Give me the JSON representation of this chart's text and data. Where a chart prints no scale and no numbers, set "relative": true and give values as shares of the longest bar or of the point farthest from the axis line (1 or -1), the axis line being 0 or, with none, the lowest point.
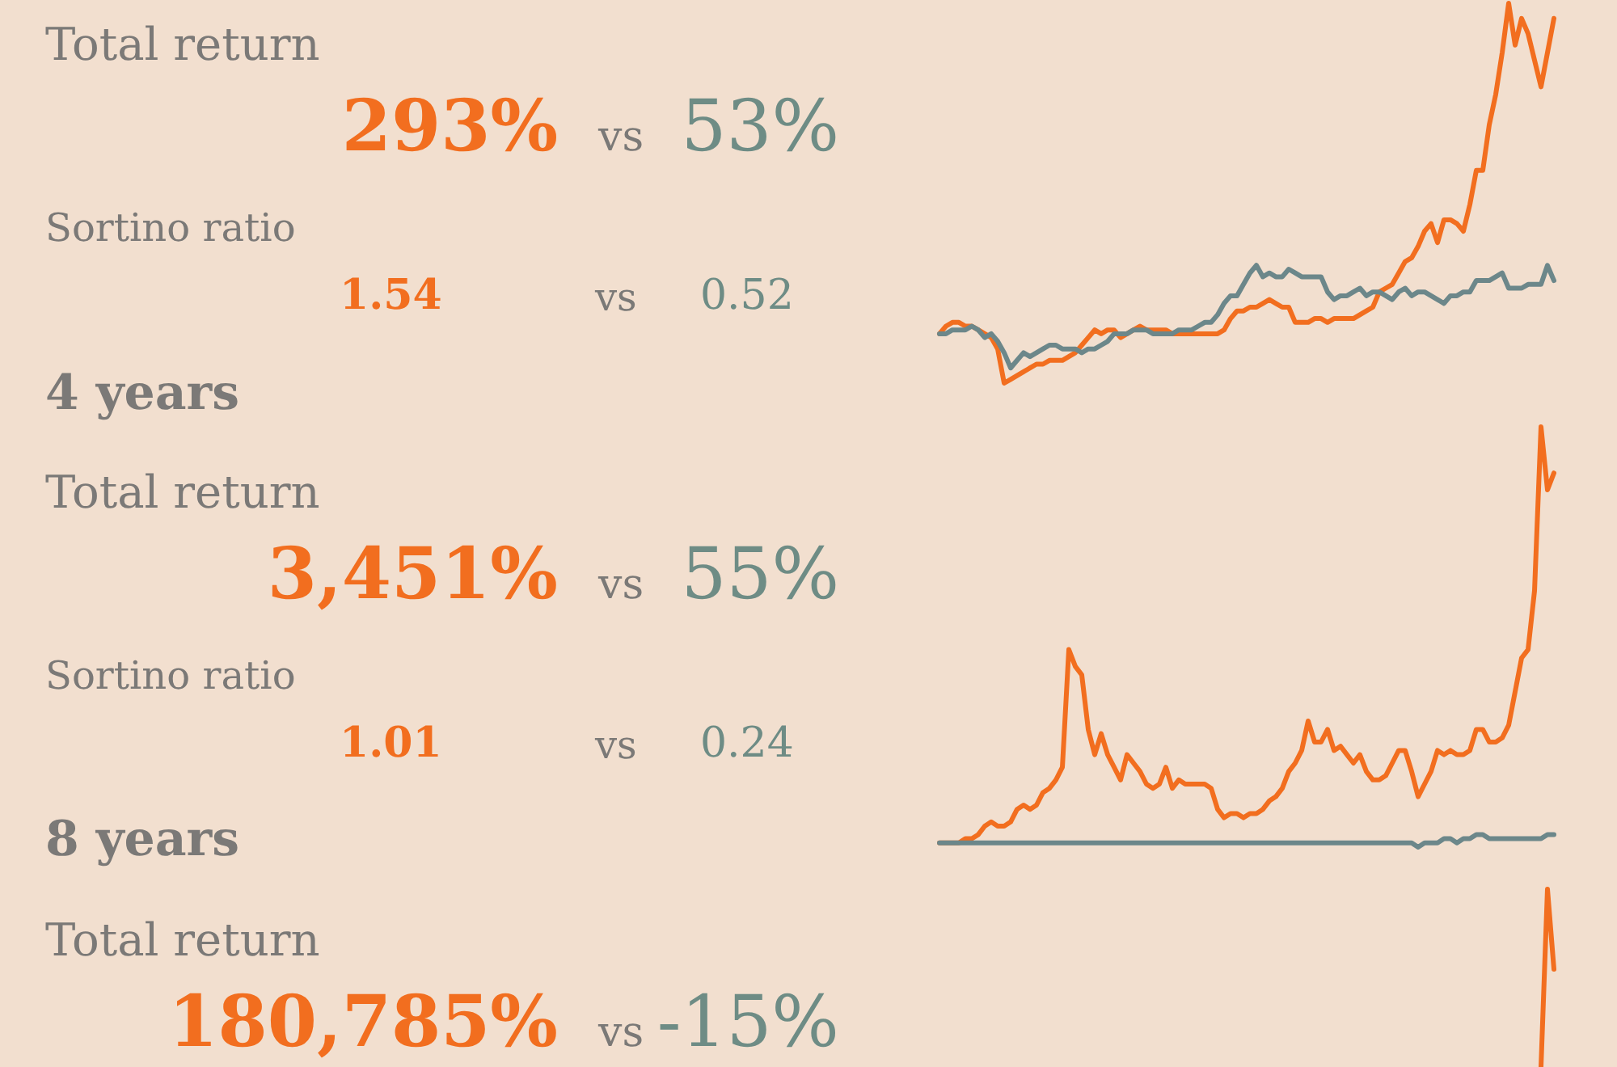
{
  "chart_data": [
    {
      "type": "other",
      "annotations": [
        "Total return",
        "293%",
        "vs",
        "53%",
        "Sortino ratio",
        "1.54",
        "vs",
        "0.52"
      ],
      "colors": [
        "#f26e1f",
        "#6e8c85"
      ]
    },
    {
      "type": "line",
      "relative": true,
      "categories": [
        null,
        null,
        null,
        null,
        null,
        null,
        null,
        null,
        null,
        null,
        null,
        null,
        null,
        null,
        null,
        null,
        null,
        null,
        null,
        null,
        null,
        null,
        null,
        null,
        null,
        null,
        null,
        null,
        null,
        null,
        null,
        null,
        null,
        null,
        null,
        null,
        null,
        null,
        null,
        null,
        null,
        null,
        null,
        null,
        null,
        null,
        null,
        null,
        null,
        null,
        null,
        null,
        null,
        null,
        null,
        null,
        null,
        null,
        null,
        null,
        null,
        null,
        null,
        null,
        null,
        null,
        null,
        null,
        null,
        null,
        null,
        null,
        null,
        null,
        null,
        null,
        null,
        null,
        null,
        null,
        null,
        null,
        null,
        null,
        null,
        null,
        null,
        null,
        null,
        null,
        null,
        null,
        null,
        null,
        null,
        null
      ],
      "series": [
        {
          "color": "#f26e1f",
          "values": [
            0.13,
            0.15,
            0.16,
            0.16,
            0.15,
            0.15,
            0.14,
            0.13,
            0.12,
            0.09,
            0,
            0.01,
            0.02,
            0.03,
            0.04,
            0.05,
            0.05,
            0.06,
            0.06,
            0.06,
            0.07,
            0.08,
            0.1,
            0.12,
            0.14,
            0.13,
            0.14,
            0.14,
            0.12,
            0.13,
            0.14,
            0.15,
            0.14,
            0.14,
            0.14,
            0.14,
            0.13,
            0.13,
            0.13,
            0.13,
            0.13,
            0.13,
            0.13,
            0.13,
            0.14,
            0.17,
            0.19,
            0.19,
            0.2,
            0.2,
            0.21,
            0.22,
            0.21,
            0.2,
            0.2,
            0.16,
            0.16,
            0.16,
            0.17,
            0.17,
            0.16,
            0.17,
            0.17,
            0.17,
            0.17,
            0.18,
            0.19,
            0.2,
            0.24,
            0.25,
            0.26,
            0.29,
            0.32,
            0.33,
            0.36,
            0.4,
            0.42,
            0.37,
            0.43,
            0.43,
            0.42,
            0.4,
            0.47,
            0.56,
            0.56,
            0.68,
            0.76,
            0.87,
            1,
            0.89,
            0.96,
            0.92,
            0.85,
            0.78,
            0.87,
            0.96
          ]
        },
        {
          "color": "#6c878a",
          "values": [
            0.13,
            0.13,
            0.14,
            0.14,
            0.14,
            0.15,
            0.14,
            0.12,
            0.13,
            0.11,
            0.08,
            0.04,
            0.06,
            0.08,
            0.07,
            0.08,
            0.09,
            0.1,
            0.1,
            0.09,
            0.09,
            0.09,
            0.08,
            0.09,
            0.09,
            0.1,
            0.11,
            0.13,
            0.13,
            0.13,
            0.14,
            0.14,
            0.14,
            0.13,
            0.13,
            0.13,
            0.13,
            0.14,
            0.14,
            0.14,
            0.15,
            0.16,
            0.16,
            0.18,
            0.21,
            0.23,
            0.23,
            0.26,
            0.29,
            0.31,
            0.28,
            0.29,
            0.28,
            0.28,
            0.3,
            0.29,
            0.28,
            0.28,
            0.28,
            0.28,
            0.24,
            0.22,
            0.23,
            0.23,
            0.24,
            0.25,
            0.23,
            0.24,
            0.24,
            0.23,
            0.22,
            0.24,
            0.25,
            0.23,
            0.24,
            0.24,
            0.23,
            0.22,
            0.21,
            0.23,
            0.23,
            0.24,
            0.24,
            0.27,
            0.27,
            0.27,
            0.28,
            0.29,
            0.25,
            0.25,
            0.25,
            0.26,
            0.26,
            0.26,
            0.31,
            0.27
          ]
        }
      ]
    },
    {
      "type": "other",
      "title": "4 years",
      "annotations": [
        "Total return",
        "3,451%",
        "vs",
        "55%",
        "Sortino ratio",
        "1.01",
        "vs",
        "0.24"
      ],
      "colors": [
        "#f26e1f",
        "#6e8c85"
      ]
    },
    {
      "type": "line",
      "relative": true,
      "categories": [
        null,
        null,
        null,
        null,
        null,
        null,
        null,
        null,
        null,
        null,
        null,
        null,
        null,
        null,
        null,
        null,
        null,
        null,
        null,
        null,
        null,
        null,
        null,
        null,
        null,
        null,
        null,
        null,
        null,
        null,
        null,
        null,
        null,
        null,
        null,
        null,
        null,
        null,
        null,
        null,
        null,
        null,
        null,
        null,
        null,
        null,
        null,
        null,
        null,
        null,
        null,
        null,
        null,
        null,
        null,
        null,
        null,
        null,
        null,
        null,
        null,
        null,
        null,
        null,
        null,
        null,
        null,
        null,
        null,
        null,
        null,
        null,
        null,
        null,
        null,
        null,
        null,
        null,
        null,
        null,
        null,
        null,
        null,
        null,
        null,
        null,
        null,
        null,
        null,
        null,
        null,
        null,
        null,
        null,
        null,
        null
      ],
      "series": [
        {
          "color": "#f26e1f",
          "values": [
            0.01,
            0.01,
            0.01,
            0.01,
            0.02,
            0.02,
            0.03,
            0.05,
            0.06,
            0.05,
            0.05,
            0.06,
            0.09,
            0.1,
            0.09,
            0.1,
            0.13,
            0.14,
            0.16,
            0.19,
            0.47,
            0.43,
            0.41,
            0.28,
            0.22,
            0.27,
            0.22,
            0.19,
            0.16,
            0.22,
            0.2,
            0.18,
            0.15,
            0.14,
            0.15,
            0.19,
            0.14,
            0.16,
            0.15,
            0.15,
            0.15,
            0.15,
            0.14,
            0.09,
            0.07,
            0.08,
            0.08,
            0.07,
            0.08,
            0.08,
            0.09,
            0.11,
            0.12,
            0.14,
            0.18,
            0.2,
            0.23,
            0.3,
            0.25,
            0.25,
            0.28,
            0.23,
            0.24,
            0.22,
            0.2,
            0.22,
            0.18,
            0.16,
            0.16,
            0.17,
            0.2,
            0.23,
            0.23,
            0.18,
            0.12,
            0.15,
            0.18,
            0.23,
            0.22,
            0.23,
            0.22,
            0.22,
            0.23,
            0.28,
            0.28,
            0.25,
            0.25,
            0.26,
            0.29,
            0.37,
            0.45,
            0.47,
            0.61,
            1,
            0.85,
            0.89
          ]
        },
        {
          "color": "#6c878a",
          "values": [
            0.01,
            0.01,
            0.01,
            0.01,
            0.01,
            0.01,
            0.01,
            0.01,
            0.01,
            0.01,
            0.01,
            0.01,
            0.01,
            0.01,
            0.01,
            0.01,
            0.01,
            0.01,
            0.01,
            0.01,
            0.01,
            0.01,
            0.01,
            0.01,
            0.01,
            0.01,
            0.01,
            0.01,
            0.01,
            0.01,
            0.01,
            0.01,
            0.01,
            0.01,
            0.01,
            0.01,
            0.01,
            0.01,
            0.01,
            0.01,
            0.01,
            0.01,
            0.01,
            0.01,
            0.01,
            0.01,
            0.01,
            0.01,
            0.01,
            0.01,
            0.01,
            0.01,
            0.01,
            0.01,
            0.01,
            0.01,
            0.01,
            0.01,
            0.01,
            0.01,
            0.01,
            0.01,
            0.01,
            0.01,
            0.01,
            0.01,
            0.01,
            0.01,
            0.01,
            0.01,
            0.01,
            0.01,
            0.01,
            0.01,
            0,
            0.01,
            0.01,
            0.01,
            0.02,
            0.02,
            0.01,
            0.02,
            0.02,
            0.03,
            0.03,
            0.02,
            0.02,
            0.02,
            0.02,
            0.02,
            0.02,
            0.02,
            0.02,
            0.02,
            0.03,
            0.03
          ]
        }
      ]
    },
    {
      "type": "other",
      "title": "8 years",
      "annotations": [
        "Total return",
        "180,785%",
        "vs",
        "-15%"
      ],
      "colors": [
        "#f26e1f",
        "#6e8c85"
      ]
    },
    {
      "type": "line",
      "relative": true,
      "categories": [
        null,
        null,
        null,
        null,
        null,
        null,
        null,
        null,
        null,
        null,
        null,
        null,
        null,
        null,
        null,
        null,
        null,
        null,
        null,
        null,
        null,
        null,
        null,
        null,
        null,
        null,
        null,
        null,
        null,
        null,
        null,
        null,
        null,
        null,
        null,
        null,
        null,
        null,
        null,
        null,
        null,
        null,
        null,
        null,
        null,
        null,
        null,
        null,
        null,
        null,
        null,
        null,
        null,
        null,
        null,
        null,
        null,
        null,
        null,
        null,
        null,
        null,
        null,
        null,
        null,
        null,
        null,
        null,
        null,
        null,
        null,
        null,
        null,
        null,
        null,
        null,
        null,
        null,
        null,
        null,
        null,
        null,
        null,
        null,
        null,
        null,
        null,
        null,
        null,
        null,
        null,
        null,
        null,
        null,
        null,
        null
      ],
      "series": [
        {
          "color": "#f26e1f",
          "values": [
            null,
            null,
            null,
            null,
            null,
            null,
            null,
            null,
            null,
            null,
            null,
            null,
            null,
            null,
            null,
            null,
            null,
            null,
            null,
            null,
            null,
            null,
            null,
            null,
            null,
            null,
            null,
            null,
            null,
            null,
            null,
            null,
            null,
            null,
            null,
            null,
            null,
            null,
            null,
            null,
            null,
            null,
            null,
            null,
            null,
            null,
            null,
            null,
            null,
            null,
            null,
            null,
            null,
            null,
            null,
            null,
            null,
            null,
            null,
            null,
            null,
            null,
            null,
            null,
            null,
            null,
            null,
            null,
            null,
            null,
            null,
            null,
            null,
            null,
            null,
            null,
            null,
            null,
            null,
            null,
            null,
            null,
            null,
            null,
            null,
            null,
            null,
            null,
            null,
            null,
            null,
            null,
            null,
            0,
            1,
            0.55
          ]
        }
      ]
    }
  ]
}
